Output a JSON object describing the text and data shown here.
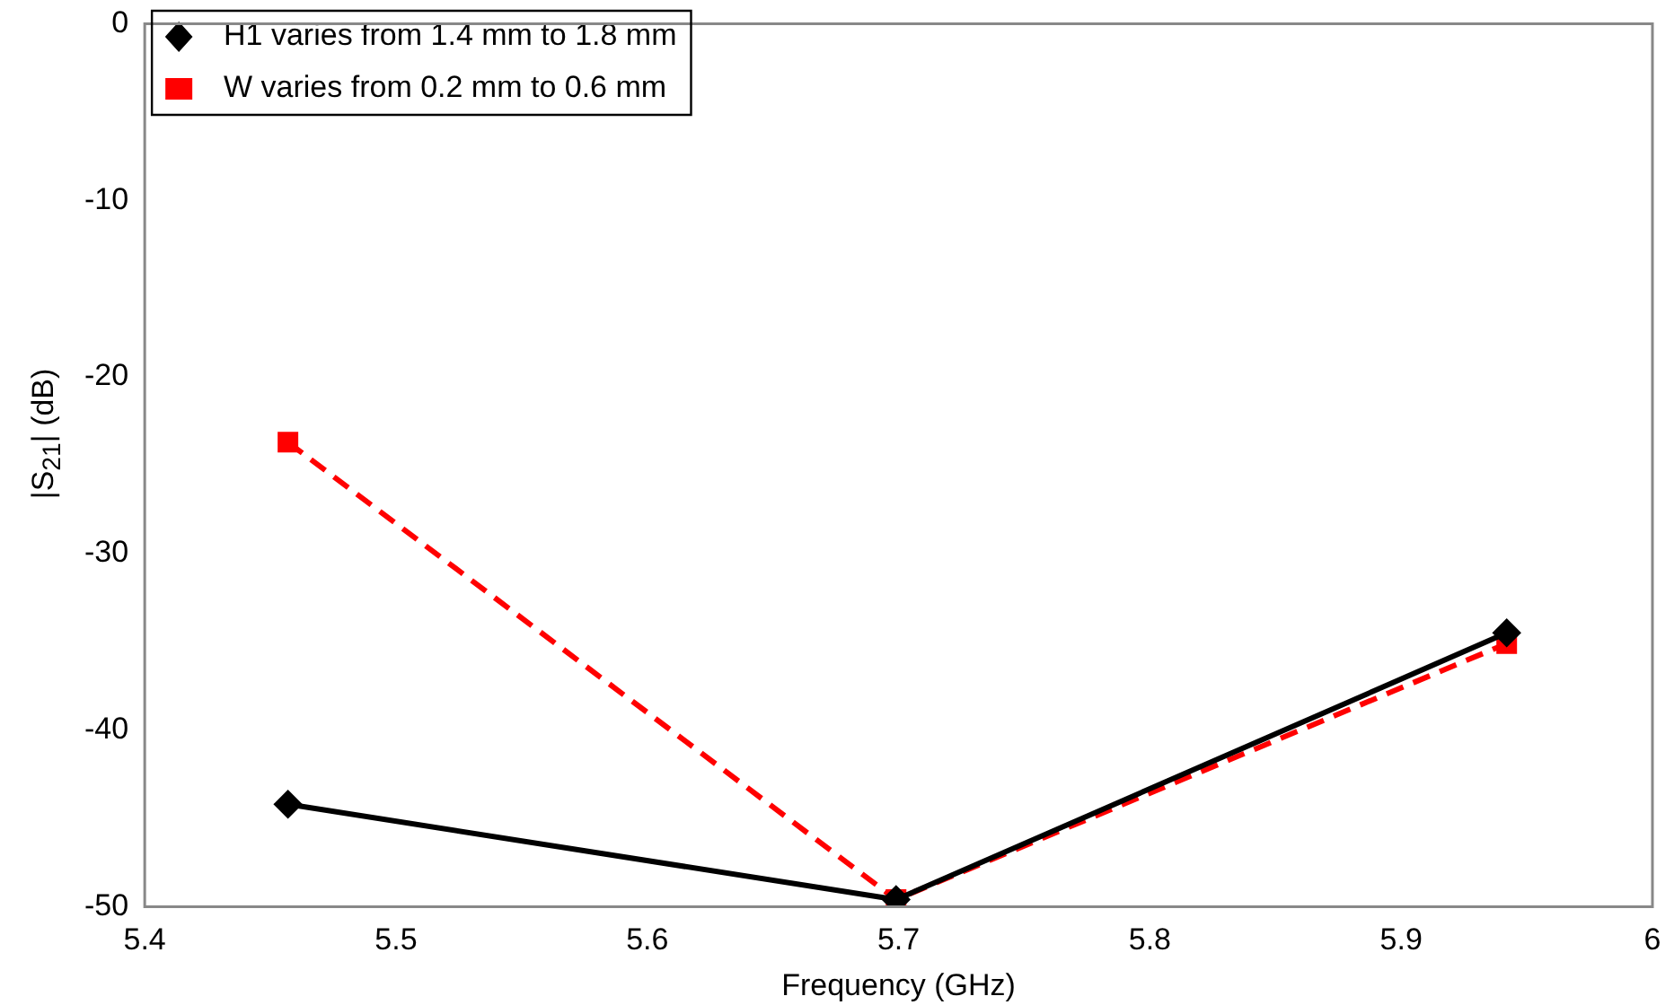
{
  "chart_data": {
    "type": "line",
    "xlabel": "Frequency (GHz)",
    "ylabel": "|S$_{21}$| (dB)",
    "xlim": [
      5.4,
      6
    ],
    "xticks": [
      5.4,
      5.5,
      5.6,
      5.7,
      5.8,
      5.9,
      6
    ],
    "ylim": [
      -50,
      0
    ],
    "yticks": [
      -50,
      -40,
      -30,
      -20,
      -10,
      0
    ],
    "grid": false,
    "legend": "top left",
    "series": [
      {
        "name": "H1 varies from 1.4 mm to 1.8 mm",
        "color": "#000000",
        "marker": "diamond",
        "line_style": "solid",
        "x": [
          5.457,
          5.699,
          5.942
        ],
        "values": [
          -44.2,
          -49.6,
          -34.5
        ]
      },
      {
        "name": "W varies from 0.2 mm to 0.6 mm",
        "color": "#ff0000",
        "marker": "square",
        "line_style": "dashed",
        "x": [
          5.457,
          5.699,
          5.942
        ],
        "values": [
          -23.7,
          -49.6,
          -35.1
        ]
      }
    ]
  }
}
